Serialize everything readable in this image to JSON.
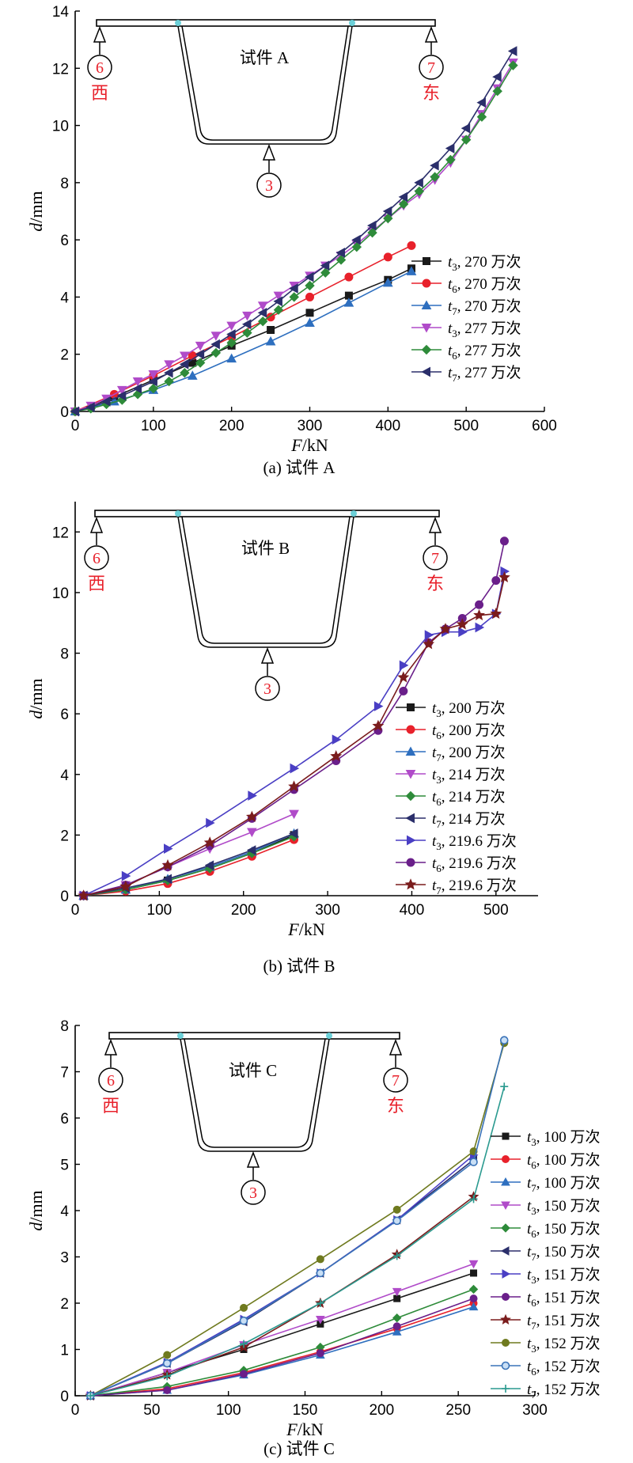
{
  "chart_data": [
    {
      "type": "line",
      "panel_id": "A",
      "caption": "(a) 试件 A",
      "xlabel_italic": "F",
      "xlabel_unit": "/kN",
      "ylabel_italic": "d",
      "ylabel_unit": "/mm",
      "xlim": [
        0,
        600
      ],
      "ylim": [
        0,
        14
      ],
      "xticks": [
        0,
        100,
        200,
        300,
        400,
        500,
        600
      ],
      "yticks": [
        0,
        2,
        4,
        6,
        8,
        10,
        12,
        14
      ],
      "legend_position": "right",
      "diagram": {
        "specimen_label": "试件 A",
        "gauge_west_number": "6",
        "gauge_west_label": "西",
        "gauge_east_number": "7",
        "gauge_east_label": "东",
        "gauge_bottom_number": "3"
      },
      "series": [
        {
          "name": "t3, 270 万次",
          "sym": "t",
          "sub": "3",
          "rest": ", 270 万次",
          "color": "#1a1a1a",
          "marker": "square",
          "x": [
            0,
            50,
            100,
            150,
            200,
            250,
            300,
            350,
            400,
            430
          ],
          "y": [
            0,
            0.5,
            1.1,
            1.7,
            2.3,
            2.85,
            3.45,
            4.05,
            4.6,
            5.0
          ]
        },
        {
          "name": "t6, 270 万次",
          "sym": "t",
          "sub": "6",
          "rest": ", 270 万次",
          "color": "#e8212b",
          "marker": "circle",
          "x": [
            0,
            50,
            100,
            150,
            200,
            250,
            300,
            350,
            400,
            430
          ],
          "y": [
            0,
            0.6,
            1.25,
            1.95,
            2.6,
            3.3,
            4.0,
            4.7,
            5.4,
            5.8
          ]
        },
        {
          "name": "t7, 270 万次",
          "sym": "t",
          "sub": "7",
          "rest": ", 270 万次",
          "color": "#2e6fbf",
          "marker": "triangle-up",
          "x": [
            0,
            50,
            100,
            150,
            200,
            250,
            300,
            350,
            400,
            430
          ],
          "y": [
            0,
            0.35,
            0.75,
            1.25,
            1.85,
            2.45,
            3.1,
            3.8,
            4.5,
            4.9
          ]
        },
        {
          "name": "t3, 277 万次",
          "sym": "t",
          "sub": "3",
          "rest": ", 277 万次",
          "color": "#b04bc9",
          "marker": "triangle-down",
          "x": [
            0,
            20,
            40,
            60,
            80,
            100,
            120,
            140,
            160,
            180,
            200,
            220,
            240,
            260,
            280,
            300,
            320,
            340,
            360,
            380,
            400,
            420,
            440,
            460,
            480,
            500,
            520,
            540,
            560
          ],
          "y": [
            0,
            0.2,
            0.45,
            0.75,
            1.05,
            1.3,
            1.65,
            1.95,
            2.3,
            2.65,
            3.0,
            3.35,
            3.7,
            4.05,
            4.4,
            4.75,
            5.1,
            5.45,
            5.85,
            6.3,
            6.75,
            7.2,
            7.6,
            8.1,
            8.7,
            9.5,
            10.4,
            11.3,
            12.2
          ]
        },
        {
          "name": "t6, 277 万次",
          "sym": "t",
          "sub": "6",
          "rest": ", 277 万次",
          "color": "#2e8b3a",
          "marker": "diamond",
          "x": [
            0,
            20,
            40,
            60,
            80,
            100,
            120,
            140,
            160,
            180,
            200,
            220,
            240,
            260,
            280,
            300,
            320,
            340,
            360,
            380,
            400,
            420,
            440,
            460,
            480,
            500,
            520,
            540,
            560
          ],
          "y": [
            0,
            0.1,
            0.25,
            0.4,
            0.6,
            0.8,
            1.05,
            1.35,
            1.7,
            2.05,
            2.4,
            2.75,
            3.15,
            3.55,
            4.0,
            4.4,
            4.85,
            5.3,
            5.75,
            6.25,
            6.75,
            7.25,
            7.7,
            8.2,
            8.8,
            9.5,
            10.3,
            11.2,
            12.1
          ]
        },
        {
          "name": "t7, 277 万次",
          "sym": "t",
          "sub": "7",
          "rest": ", 277 万次",
          "color": "#2b2f6b",
          "marker": "triangle-left",
          "x": [
            0,
            20,
            40,
            60,
            80,
            100,
            120,
            140,
            160,
            180,
            200,
            220,
            240,
            260,
            280,
            300,
            320,
            340,
            360,
            380,
            400,
            420,
            440,
            460,
            480,
            500,
            520,
            540,
            560
          ],
          "y": [
            0,
            0.15,
            0.35,
            0.55,
            0.8,
            1.05,
            1.35,
            1.65,
            2.0,
            2.35,
            2.7,
            3.05,
            3.45,
            3.85,
            4.3,
            4.7,
            5.1,
            5.55,
            6.0,
            6.5,
            7.0,
            7.5,
            8.0,
            8.6,
            9.2,
            9.9,
            10.8,
            11.7,
            12.6
          ]
        }
      ]
    },
    {
      "type": "line",
      "panel_id": "B",
      "caption": "(b) 试件 B",
      "xlabel_italic": "F",
      "xlabel_unit": "/kN",
      "ylabel_italic": "d",
      "ylabel_unit": "/mm",
      "xlim": [
        0,
        550
      ],
      "ylim": [
        0,
        13
      ],
      "xticks": [
        0,
        100,
        200,
        300,
        400,
        500
      ],
      "yticks": [
        0,
        2,
        4,
        6,
        8,
        10,
        12
      ],
      "legend_position": "right",
      "diagram": {
        "specimen_label": "试件 B",
        "gauge_west_number": "6",
        "gauge_west_label": "西",
        "gauge_east_number": "7",
        "gauge_east_label": "东",
        "gauge_bottom_number": "3"
      },
      "series": [
        {
          "name": "t3, 200 万次",
          "sym": "t",
          "sub": "3",
          "rest": ", 200 万次",
          "color": "#1a1a1a",
          "marker": "square",
          "x": [
            10,
            60,
            110,
            160,
            210,
            260
          ],
          "y": [
            0,
            0.2,
            0.5,
            0.9,
            1.4,
            2.0
          ]
        },
        {
          "name": "t6, 200 万次",
          "sym": "t",
          "sub": "6",
          "rest": ", 200 万次",
          "color": "#e8212b",
          "marker": "circle",
          "x": [
            10,
            60,
            110,
            160,
            210,
            260
          ],
          "y": [
            0,
            0.15,
            0.4,
            0.8,
            1.3,
            1.85
          ]
        },
        {
          "name": "t7, 200 万次",
          "sym": "t",
          "sub": "7",
          "rest": ", 200 万次",
          "color": "#2e6fbf",
          "marker": "triangle-up",
          "x": [
            10,
            60,
            110,
            160,
            210,
            260
          ],
          "y": [
            0,
            0.2,
            0.55,
            0.95,
            1.45,
            2.05
          ]
        },
        {
          "name": "t3, 214 万次",
          "sym": "t",
          "sub": "3",
          "rest": ", 214 万次",
          "color": "#b04bc9",
          "marker": "triangle-down",
          "x": [
            10,
            60,
            110,
            160,
            210,
            260
          ],
          "y": [
            0,
            0.35,
            0.95,
            1.55,
            2.1,
            2.7
          ]
        },
        {
          "name": "t6, 214 万次",
          "sym": "t",
          "sub": "6",
          "rest": ", 214 万次",
          "color": "#2e8b3a",
          "marker": "diamond",
          "x": [
            10,
            60,
            110,
            160,
            210,
            260
          ],
          "y": [
            0,
            0.2,
            0.5,
            0.9,
            1.4,
            1.95
          ]
        },
        {
          "name": "t7, 214 万次",
          "sym": "t",
          "sub": "7",
          "rest": ", 214 万次",
          "color": "#2b2f6b",
          "marker": "triangle-left",
          "x": [
            10,
            60,
            110,
            160,
            210,
            260
          ],
          "y": [
            0,
            0.25,
            0.55,
            1.0,
            1.5,
            2.05
          ]
        },
        {
          "name": "t3, 219.6 万次",
          "sym": "t",
          "sub": "3",
          "rest": ", 219.6 万次",
          "color": "#4a3fc4",
          "marker": "triangle-right",
          "x": [
            10,
            60,
            110,
            160,
            210,
            260,
            310,
            360,
            390,
            420,
            440,
            460,
            480,
            500,
            510
          ],
          "y": [
            0,
            0.65,
            1.55,
            2.4,
            3.3,
            4.2,
            5.15,
            6.25,
            7.6,
            8.6,
            8.7,
            8.7,
            8.85,
            9.3,
            10.7
          ]
        },
        {
          "name": "t6, 219.6 万次",
          "sym": "t",
          "sub": "6",
          "rest": ", 219.6 万次",
          "color": "#6a1f8a",
          "marker": "circle",
          "x": [
            10,
            60,
            110,
            160,
            210,
            260,
            310,
            360,
            390,
            420,
            440,
            460,
            480,
            500,
            510
          ],
          "y": [
            0,
            0.35,
            0.95,
            1.65,
            2.55,
            3.5,
            4.45,
            5.45,
            6.75,
            8.35,
            8.8,
            9.15,
            9.6,
            10.4,
            11.7
          ]
        },
        {
          "name": "t7, 219.6 万次",
          "sym": "t",
          "sub": "7",
          "rest": ", 219.6 万次",
          "color": "#7a1c1c",
          "marker": "star",
          "x": [
            10,
            60,
            110,
            160,
            210,
            260,
            310,
            360,
            390,
            420,
            440,
            460,
            480,
            500,
            510
          ],
          "y": [
            0,
            0.3,
            1.0,
            1.75,
            2.6,
            3.6,
            4.6,
            5.6,
            7.2,
            8.3,
            8.8,
            8.95,
            9.25,
            9.3,
            10.5
          ]
        }
      ]
    },
    {
      "type": "line",
      "panel_id": "C",
      "caption": "(c) 试件 C",
      "xlabel_italic": "F",
      "xlabel_unit": "/kN",
      "ylabel_italic": "d",
      "ylabel_unit": "/mm",
      "xlim": [
        0,
        300
      ],
      "ylim": [
        0,
        8
      ],
      "xticks": [
        0,
        50,
        100,
        150,
        200,
        250,
        300
      ],
      "yticks": [
        0,
        1,
        2,
        3,
        4,
        5,
        6,
        7,
        8
      ],
      "legend_position": "right",
      "diagram": {
        "specimen_label": "试件 C",
        "gauge_west_number": "6",
        "gauge_west_label": "西",
        "gauge_east_number": "7",
        "gauge_east_label": "东",
        "gauge_bottom_number": "3"
      },
      "series": [
        {
          "name": "t3, 100 万次",
          "sym": "t",
          "sub": "3",
          "rest": ", 100 万次",
          "color": "#1a1a1a",
          "marker": "square",
          "x": [
            10,
            60,
            110,
            160,
            210,
            260
          ],
          "y": [
            0,
            0.5,
            1.0,
            1.55,
            2.1,
            2.65
          ]
        },
        {
          "name": "t6, 100 万次",
          "sym": "t",
          "sub": "6",
          "rest": ", 100 万次",
          "color": "#e8212b",
          "marker": "circle",
          "x": [
            10,
            60,
            110,
            160,
            210,
            260
          ],
          "y": [
            0,
            0.15,
            0.5,
            0.95,
            1.45,
            2.0
          ]
        },
        {
          "name": "t7, 100 万次",
          "sym": "t",
          "sub": "7",
          "rest": ", 100 万次",
          "color": "#2e6fbf",
          "marker": "triangle-up",
          "x": [
            10,
            60,
            110,
            160,
            210,
            260
          ],
          "y": [
            0,
            0.12,
            0.45,
            0.88,
            1.38,
            1.92
          ]
        },
        {
          "name": "t3, 150 万次",
          "sym": "t",
          "sub": "3",
          "rest": ", 150 万次",
          "color": "#b04bc9",
          "marker": "triangle-down",
          "x": [
            10,
            60,
            110,
            160,
            210,
            260
          ],
          "y": [
            0,
            0.5,
            1.1,
            1.65,
            2.25,
            2.85
          ]
        },
        {
          "name": "t6, 150 万次",
          "sym": "t",
          "sub": "6",
          "rest": ", 150 万次",
          "color": "#2e8b3a",
          "marker": "diamond",
          "x": [
            10,
            60,
            110,
            160,
            210,
            260
          ],
          "y": [
            0,
            0.2,
            0.55,
            1.05,
            1.68,
            2.3
          ]
        },
        {
          "name": "t7, 150 万次",
          "sym": "t",
          "sub": "7",
          "rest": ", 150 万次",
          "color": "#2b2f6b",
          "marker": "triangle-left",
          "x": [
            10,
            60,
            110,
            160,
            210,
            260
          ],
          "y": [
            0,
            0.7,
            1.6,
            2.65,
            3.8,
            5.1
          ]
        },
        {
          "name": "t3, 151 万次",
          "sym": "t",
          "sub": "3",
          "rest": ", 151 万次",
          "color": "#4a3fc4",
          "marker": "triangle-right",
          "x": [
            10,
            60,
            110,
            160,
            210,
            260
          ],
          "y": [
            0,
            0.72,
            1.65,
            2.65,
            3.8,
            5.2
          ]
        },
        {
          "name": "t6, 151 万次",
          "sym": "t",
          "sub": "6",
          "rest": ", 151 万次",
          "color": "#6a1f8a",
          "marker": "circle",
          "x": [
            10,
            60,
            110,
            160,
            210,
            260
          ],
          "y": [
            0,
            0.12,
            0.47,
            0.92,
            1.5,
            2.1
          ]
        },
        {
          "name": "t7, 151 万次",
          "sym": "t",
          "sub": "7",
          "rest": ", 151 万次",
          "color": "#7a1c1c",
          "marker": "star",
          "x": [
            10,
            60,
            110,
            160,
            210,
            260
          ],
          "y": [
            0,
            0.45,
            1.05,
            2.0,
            3.05,
            4.3
          ]
        },
        {
          "name": "t3, 152 万次",
          "sym": "t",
          "sub": "3",
          "rest": ", 152 万次",
          "color": "#6f7a1f",
          "marker": "circle",
          "x": [
            10,
            60,
            110,
            160,
            210,
            260,
            280
          ],
          "y": [
            0,
            0.88,
            1.9,
            2.95,
            4.02,
            5.28,
            7.62
          ]
        },
        {
          "name": "t6, 152 万次",
          "sym": "t",
          "sub": "6",
          "rest": ", 152 万次",
          "color": "#3a73b8",
          "marker": "circle-open",
          "x": [
            10,
            60,
            110,
            160,
            210,
            260,
            280
          ],
          "y": [
            0,
            0.7,
            1.62,
            2.65,
            3.78,
            5.05,
            7.68
          ]
        },
        {
          "name": "t7, 152 万次",
          "sym": "t",
          "sub": "7",
          "rest": ", 152 万次",
          "color": "#2a9a8f",
          "marker": "plus",
          "x": [
            10,
            60,
            110,
            160,
            210,
            260,
            280
          ],
          "y": [
            0,
            0.42,
            1.12,
            2.0,
            3.02,
            4.25,
            6.68
          ]
        }
      ]
    }
  ]
}
